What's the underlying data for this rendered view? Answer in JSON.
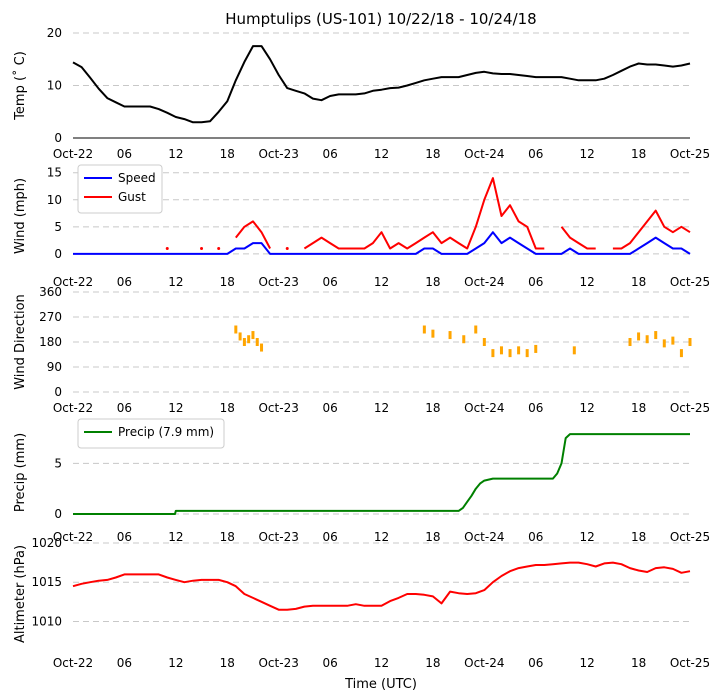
{
  "title": "Humptulips (US-101) 10/22/18 - 10/24/18",
  "xlabel": "Time (UTC)",
  "xticks": [
    "Oct-22",
    "06",
    "12",
    "18",
    "Oct-23",
    "06",
    "12",
    "18",
    "Oct-24",
    "06",
    "12",
    "18",
    "Oct-25"
  ],
  "chart_data": [
    {
      "type": "line",
      "ylabel": "Temp (˚ C)",
      "ylim": [
        0,
        20
      ],
      "yticks": [
        "0",
        "10",
        "20"
      ],
      "x_hours": [
        0,
        1,
        2,
        3,
        4,
        5,
        6,
        7,
        8,
        9,
        10,
        11,
        12,
        13,
        14,
        15,
        16,
        17,
        18,
        19,
        20,
        21,
        22,
        23,
        24,
        25,
        26,
        27,
        28,
        29,
        30,
        31,
        32,
        33,
        34,
        35,
        36,
        37,
        38,
        39,
        40,
        41,
        42,
        43,
        44,
        45,
        46,
        47,
        48,
        49,
        50,
        51,
        52,
        53,
        54,
        55,
        56,
        57,
        58,
        59,
        60,
        61,
        62,
        63,
        64,
        65,
        66,
        67,
        68,
        69,
        70,
        71,
        72
      ],
      "series": [
        {
          "name": "Temp",
          "color": "#000000",
          "values": [
            14.4,
            13.5,
            11.5,
            9.4,
            7.6,
            6.8,
            6.0,
            6.0,
            6.0,
            6.0,
            5.5,
            4.8,
            4.0,
            3.6,
            3.0,
            3.0,
            3.2,
            5.0,
            7.0,
            11.0,
            14.5,
            17.5,
            17.5,
            15.0,
            12.0,
            9.5,
            9.0,
            8.5,
            7.5,
            7.2,
            8.0,
            8.3,
            8.3,
            8.3,
            8.5,
            9.0,
            9.2,
            9.5,
            9.6,
            10.0,
            10.5,
            11.0,
            11.3,
            11.6,
            11.6,
            11.6,
            12.0,
            12.4,
            12.6,
            12.3,
            12.2,
            12.2,
            12.0,
            11.8,
            11.6,
            11.6,
            11.6,
            11.6,
            11.3,
            11.0,
            11.0,
            11.0,
            11.3,
            12.0,
            12.8,
            13.6,
            14.2,
            14.0,
            14.0,
            13.8,
            13.6,
            13.8,
            14.2
          ]
        }
      ]
    },
    {
      "type": "line",
      "ylabel": "Wind (mph)",
      "ylim": [
        -1.5,
        15.5
      ],
      "yticks": [
        "0",
        "5",
        "10",
        "15"
      ],
      "legend": "upper-left",
      "x_hours": [
        0,
        1,
        2,
        3,
        4,
        5,
        6,
        7,
        8,
        9,
        10,
        11,
        12,
        13,
        14,
        15,
        16,
        17,
        18,
        19,
        20,
        21,
        22,
        23,
        24,
        25,
        26,
        27,
        28,
        29,
        30,
        31,
        32,
        33,
        34,
        35,
        36,
        37,
        38,
        39,
        40,
        41,
        42,
        43,
        44,
        45,
        46,
        47,
        48,
        49,
        50,
        51,
        52,
        53,
        54,
        55,
        56,
        57,
        58,
        59,
        60,
        61,
        62,
        63,
        64,
        65,
        66,
        67,
        68,
        69,
        70,
        71,
        72
      ],
      "series": [
        {
          "name": "Speed",
          "color": "#0000ff",
          "values": [
            0,
            0,
            0,
            0,
            0,
            0,
            0,
            0,
            0,
            0,
            0,
            0,
            0,
            0,
            0,
            0,
            0,
            0,
            0,
            1,
            1,
            2,
            2,
            0,
            0,
            0,
            0,
            0,
            0,
            0,
            0,
            0,
            0,
            0,
            0,
            0,
            0,
            0,
            0,
            0,
            0,
            1,
            1,
            0,
            0,
            0,
            0,
            1,
            2,
            4,
            2,
            3,
            2,
            1,
            0,
            0,
            0,
            0,
            1,
            0,
            0,
            0,
            0,
            0,
            0,
            0,
            1,
            2,
            3,
            2,
            1,
            1,
            0
          ]
        },
        {
          "name": "Gust",
          "color": "#ff0000",
          "values": [
            null,
            null,
            null,
            null,
            null,
            null,
            null,
            null,
            null,
            null,
            null,
            1,
            null,
            null,
            null,
            1,
            null,
            1,
            null,
            3,
            5,
            6,
            4,
            1,
            null,
            1,
            null,
            1,
            2,
            3,
            2,
            1,
            1,
            1,
            1,
            2,
            4,
            1,
            2,
            1,
            2,
            3,
            4,
            2,
            3,
            2,
            1,
            5,
            10,
            14,
            7,
            9,
            6,
            5,
            1,
            1,
            null,
            5,
            3,
            2,
            1,
            1,
            null,
            1,
            1,
            2,
            4,
            6,
            8,
            5,
            4,
            5,
            4
          ]
        }
      ]
    },
    {
      "type": "scatter",
      "ylabel": "Wind Direction",
      "ylim": [
        0,
        360
      ],
      "yticks": [
        "0",
        "90",
        "180",
        "270",
        "360"
      ],
      "x_hours": [
        19,
        19.5,
        20,
        20.5,
        21,
        21.5,
        22,
        41,
        42,
        44,
        45.6,
        47,
        48,
        49,
        50,
        51,
        52,
        53,
        54,
        58.5,
        65,
        66,
        67,
        68,
        69,
        70,
        71,
        72
      ],
      "series": [
        {
          "name": "Direction",
          "color": "#ffa500",
          "values": [
            225,
            200,
            180,
            190,
            205,
            180,
            160,
            225,
            210,
            205,
            190,
            225,
            180,
            140,
            150,
            140,
            150,
            140,
            155,
            150,
            180,
            200,
            190,
            205,
            175,
            185,
            140,
            180
          ]
        }
      ]
    },
    {
      "type": "line",
      "ylabel": "Precip (mm)",
      "ylim": [
        -0.4,
        8.6
      ],
      "yticks": [
        "0",
        "5"
      ],
      "legend": "upper-left",
      "x_hours": [
        0,
        11.9,
        12,
        45,
        45.5,
        46,
        46.5,
        47,
        47.5,
        48,
        48.5,
        49,
        50,
        51,
        52,
        53,
        54,
        55,
        56,
        56.5,
        57,
        57.5,
        58,
        59,
        60,
        61,
        62,
        63,
        64,
        65,
        66,
        67,
        68,
        69,
        70,
        71,
        72
      ],
      "series": [
        {
          "name": "Precip (7.9 mm)",
          "color": "#008000",
          "values": [
            0,
            0,
            0.3,
            0.3,
            0.6,
            1.2,
            1.8,
            2.5,
            3.0,
            3.3,
            3.4,
            3.5,
            3.5,
            3.5,
            3.5,
            3.5,
            3.5,
            3.5,
            3.5,
            4.0,
            5.0,
            7.5,
            7.9,
            7.9,
            7.9,
            7.9,
            7.9,
            7.9,
            7.9,
            7.9,
            7.9,
            7.9,
            7.9,
            7.9,
            7.9,
            7.9,
            7.9
          ]
        }
      ]
    },
    {
      "type": "line",
      "ylabel": "Altimeter (hPa)",
      "ylim": [
        1007,
        1020
      ],
      "yticks": [
        "1010",
        "1015",
        "1020"
      ],
      "x_hours": [
        0,
        1,
        2,
        3,
        4,
        5,
        6,
        7,
        8,
        9,
        10,
        11,
        12,
        13,
        14,
        15,
        16,
        17,
        18,
        19,
        20,
        21,
        22,
        23,
        24,
        25,
        26,
        27,
        28,
        29,
        30,
        31,
        32,
        33,
        34,
        35,
        36,
        37,
        38,
        39,
        40,
        41,
        42,
        43,
        44,
        45,
        46,
        47,
        48,
        49,
        50,
        51,
        52,
        53,
        54,
        55,
        56,
        57,
        58,
        59,
        60,
        61,
        62,
        63,
        64,
        65,
        66,
        67,
        68,
        69,
        70,
        71,
        72
      ],
      "series": [
        {
          "name": "Altimeter",
          "color": "#ff0000",
          "values": [
            1014.5,
            1014.8,
            1015.0,
            1015.2,
            1015.3,
            1015.6,
            1016.0,
            1016.0,
            1016.0,
            1016.0,
            1016.0,
            1015.6,
            1015.3,
            1015.0,
            1015.2,
            1015.3,
            1015.3,
            1015.3,
            1015.0,
            1014.5,
            1013.5,
            1013.0,
            1012.5,
            1012.0,
            1011.5,
            1011.5,
            1011.6,
            1011.9,
            1012.0,
            1012.0,
            1012.0,
            1012.0,
            1012.0,
            1012.2,
            1012.0,
            1012.0,
            1012.0,
            1012.6,
            1013.0,
            1013.5,
            1013.5,
            1013.4,
            1013.2,
            1012.3,
            1013.8,
            1013.6,
            1013.5,
            1013.6,
            1014.0,
            1015.0,
            1015.8,
            1016.4,
            1016.8,
            1017.0,
            1017.2,
            1017.2,
            1017.3,
            1017.4,
            1017.5,
            1017.5,
            1017.3,
            1017.0,
            1017.4,
            1017.5,
            1017.3,
            1016.8,
            1016.5,
            1016.3,
            1016.8,
            1016.9,
            1016.7,
            1016.2,
            1016.4
          ]
        }
      ]
    }
  ]
}
